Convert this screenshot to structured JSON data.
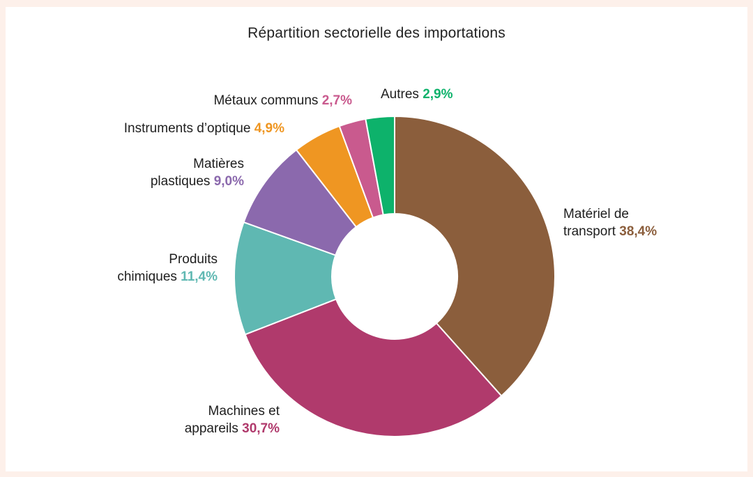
{
  "chart_data": {
    "type": "pie",
    "title": "Répartition sectorielle des importations",
    "donut": true,
    "unit": "%",
    "slices": [
      {
        "label_lines": [
          "Matériel de",
          "transport"
        ],
        "value": 38.4,
        "value_label": "38,4%",
        "color": "#8b5e3c"
      },
      {
        "label_lines": [
          "Machines et",
          "appareils"
        ],
        "value": 30.7,
        "value_label": "30,7%",
        "color": "#b03a6c"
      },
      {
        "label_lines": [
          "Produits",
          "chimiques"
        ],
        "value": 11.4,
        "value_label": "11,4%",
        "color": "#5fb8b2"
      },
      {
        "label_lines": [
          "Matières",
          "plastiques"
        ],
        "value": 9.0,
        "value_label": "9,0%",
        "color": "#8b69ad"
      },
      {
        "label_lines": [
          "Instruments d’optique"
        ],
        "value": 4.9,
        "value_label": "4,9%",
        "color": "#ef9622"
      },
      {
        "label_lines": [
          "Métaux communs"
        ],
        "value": 2.7,
        "value_label": "2,7%",
        "color": "#c95a8e"
      },
      {
        "label_lines": [
          "Autres"
        ],
        "value": 2.9,
        "value_label": "2,9%",
        "color": "#0db26b"
      }
    ]
  }
}
